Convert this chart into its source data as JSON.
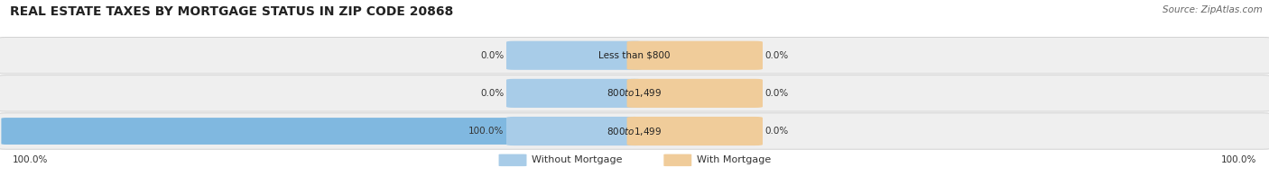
{
  "title": "REAL ESTATE TAXES BY MORTGAGE STATUS IN ZIP CODE 20868",
  "source": "Source: ZipAtlas.com",
  "rows": [
    {
      "label": "Less than $800",
      "without_mortgage": 0.0,
      "with_mortgage": 0.0
    },
    {
      "label": "$800 to $1,499",
      "without_mortgage": 0.0,
      "with_mortgage": 0.0
    },
    {
      "label": "$800 to $1,499",
      "without_mortgage": 100.0,
      "with_mortgage": 0.0
    }
  ],
  "color_without": "#80b8e0",
  "color_with": "#e8b87a",
  "color_without_center": "#a8cce8",
  "color_with_center": "#f0cc9a",
  "bg_row_light": "#efefef",
  "bg_row_dark": "#e4e4e4",
  "bg_fig": "#ffffff",
  "legend_label_without": "Without Mortgage",
  "legend_label_with": "With Mortgage",
  "left_axis_label": "100.0%",
  "right_axis_label": "100.0%",
  "title_fontsize": 10,
  "source_fontsize": 7.5,
  "bar_fontsize": 7.5,
  "legend_fontsize": 8
}
